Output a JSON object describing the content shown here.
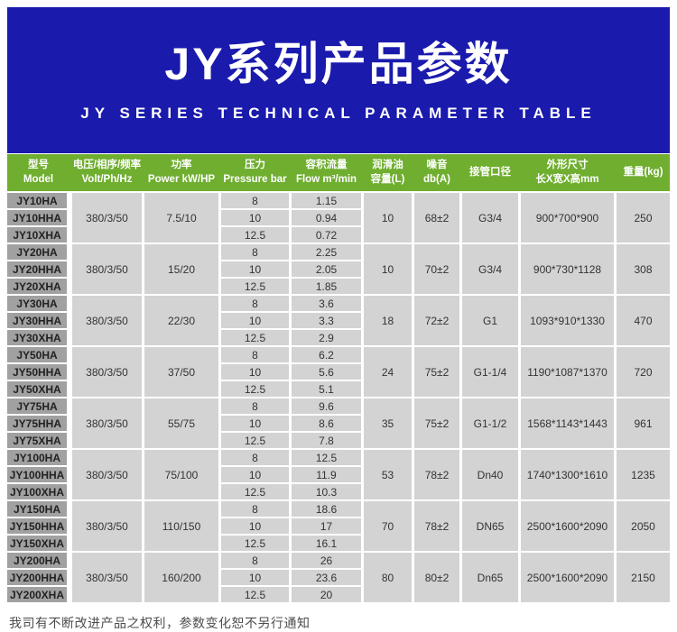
{
  "banner": {
    "title": "JY系列产品参数",
    "subtitle": "JY SERIES TECHNICAL PARAMETER TABLE"
  },
  "table": {
    "headers": [
      {
        "key": "model",
        "line1": "型号",
        "line2": "Model"
      },
      {
        "key": "voltage",
        "line1": "电压/相序/频率",
        "line2": "Volt/Ph/Hz"
      },
      {
        "key": "power",
        "line1": "功率",
        "line2": "Power kW/HP"
      },
      {
        "key": "pressure",
        "line1": "压力",
        "line2": "Pressure bar"
      },
      {
        "key": "flow",
        "line1": "容积流量",
        "line2": "Flow m³/min"
      },
      {
        "key": "oil-capacity",
        "line1": "润滑油",
        "line2": "容量(L)"
      },
      {
        "key": "noise",
        "line1": "噪音",
        "line2": "db(A)"
      },
      {
        "key": "pipe-diameter",
        "line1": "接管口径",
        "line2": ""
      },
      {
        "key": "dimensions",
        "line1": "外形尺寸",
        "line2": "长X宽X高mm"
      },
      {
        "key": "weight",
        "line1": "重量(kg)",
        "line2": ""
      }
    ],
    "groups": [
      {
        "models": [
          "JY10HA",
          "JY10HHA",
          "JY10XHA"
        ],
        "voltage": "380/3/50",
        "power": "7.5/10",
        "pressure": [
          "8",
          "10",
          "12.5"
        ],
        "flow": [
          "1.15",
          "0.94",
          "0.72"
        ],
        "oil": "10",
        "noise": "68±2",
        "pipe": "G3/4",
        "dimensions": "900*700*900",
        "weight": "250"
      },
      {
        "models": [
          "JY20HA",
          "JY20HHA",
          "JY20XHA"
        ],
        "voltage": "380/3/50",
        "power": "15/20",
        "pressure": [
          "8",
          "10",
          "12.5"
        ],
        "flow": [
          "2.25",
          "2.05",
          "1.85"
        ],
        "oil": "10",
        "noise": "70±2",
        "pipe": "G3/4",
        "dimensions": "900*730*1128",
        "weight": "308"
      },
      {
        "models": [
          "JY30HA",
          "JY30HHA",
          "JY30XHA"
        ],
        "voltage": "380/3/50",
        "power": "22/30",
        "pressure": [
          "8",
          "10",
          "12.5"
        ],
        "flow": [
          "3.6",
          "3.3",
          "2.9"
        ],
        "oil": "18",
        "noise": "72±2",
        "pipe": "G1",
        "dimensions": "1093*910*1330",
        "weight": "470"
      },
      {
        "models": [
          "JY50HA",
          "JY50HHA",
          "JY50XHA"
        ],
        "voltage": "380/3/50",
        "power": "37/50",
        "pressure": [
          "8",
          "10",
          "12.5"
        ],
        "flow": [
          "6.2",
          "5.6",
          "5.1"
        ],
        "oil": "24",
        "noise": "75±2",
        "pipe": "G1-1/4",
        "dimensions": "1190*1087*1370",
        "weight": "720"
      },
      {
        "models": [
          "JY75HA",
          "JY75HHA",
          "JY75XHA"
        ],
        "voltage": "380/3/50",
        "power": "55/75",
        "pressure": [
          "8",
          "10",
          "12.5"
        ],
        "flow": [
          "9.6",
          "8.6",
          "7.8"
        ],
        "oil": "35",
        "noise": "75±2",
        "pipe": "G1-1/2",
        "dimensions": "1568*1143*1443",
        "weight": "961"
      },
      {
        "models": [
          "JY100HA",
          "JY100HHA",
          "JY100XHA"
        ],
        "voltage": "380/3/50",
        "power": "75/100",
        "pressure": [
          "8",
          "10",
          "12.5"
        ],
        "flow": [
          "12.5",
          "11.9",
          "10.3"
        ],
        "oil": "53",
        "noise": "78±2",
        "pipe": "Dn40",
        "dimensions": "1740*1300*1610",
        "weight": "1235"
      },
      {
        "models": [
          "JY150HA",
          "JY150HHA",
          "JY150XHA"
        ],
        "voltage": "380/3/50",
        "power": "110/150",
        "pressure": [
          "8",
          "10",
          "12.5"
        ],
        "flow": [
          "18.6",
          "17",
          "16.1"
        ],
        "oil": "70",
        "noise": "78±2",
        "pipe": "DN65",
        "dimensions": "2500*1600*2090",
        "weight": "2050"
      },
      {
        "models": [
          "JY200HA",
          "JY200HHA",
          "JY200XHA"
        ],
        "voltage": "380/3/50",
        "power": "160/200",
        "pressure": [
          "8",
          "10",
          "12.5"
        ],
        "flow": [
          "26",
          "23.6",
          "20"
        ],
        "oil": "80",
        "noise": "80±2",
        "pipe": "Dn65",
        "dimensions": "2500*1600*2090",
        "weight": "2150"
      }
    ]
  },
  "footer": {
    "note": "我司有不断改进产品之权利，参数变化恕不另行通知"
  },
  "colors": {
    "banner_blue": "#1a1aad",
    "header_green": "#6fae2f",
    "model_gray": "#a1a1a1",
    "data_gray": "#d3d3d3"
  }
}
